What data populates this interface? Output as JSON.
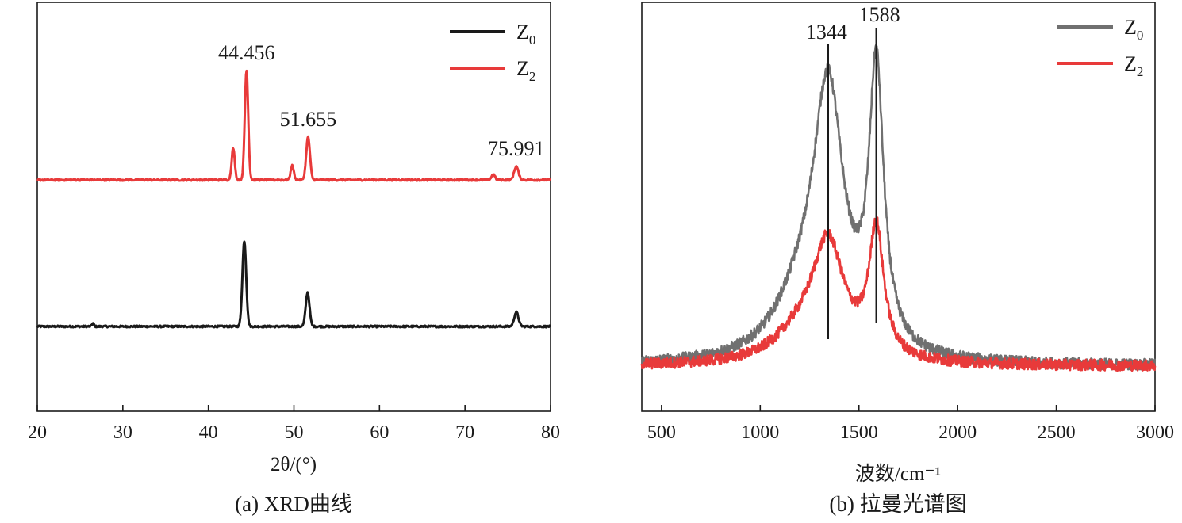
{
  "chart_data": [
    {
      "type": "line",
      "panel": "a",
      "caption": "(a) XRD曲线",
      "xlabel": "2θ/(°)",
      "ylabel": "",
      "xlim": [
        20,
        80
      ],
      "xticks": [
        "20",
        "30",
        "40",
        "50",
        "60",
        "70",
        "80"
      ],
      "y_ticks_shown": false,
      "grid": false,
      "legend": {
        "placement": "top-right",
        "entries": [
          {
            "base": "Z",
            "sub": "0",
            "color": "#1a1a1a"
          },
          {
            "base": "Z",
            "sub": "2",
            "color": "#e83a3a"
          }
        ]
      },
      "series": [
        {
          "legend": "Z0",
          "color": "#1a1a1a",
          "baseline": 0,
          "peaks": [
            {
              "x": 26.5,
              "height": 4,
              "width": 0.12
            },
            {
              "x": 44.2,
              "height": 108,
              "width": 0.22
            },
            {
              "x": 51.6,
              "height": 43,
              "width": 0.22
            },
            {
              "x": 76.0,
              "height": 18,
              "width": 0.25
            }
          ]
        },
        {
          "legend": "Z2",
          "color": "#e83a3a",
          "baseline": 185,
          "peaks": [
            {
              "x": 42.9,
              "height": 40,
              "width": 0.18
            },
            {
              "x": 44.456,
              "height": 138,
              "width": 0.2
            },
            {
              "x": 49.8,
              "height": 18,
              "width": 0.18
            },
            {
              "x": 51.655,
              "height": 54,
              "width": 0.22
            },
            {
              "x": 73.3,
              "height": 7,
              "width": 0.2
            },
            {
              "x": 75.991,
              "height": 17,
              "width": 0.25
            }
          ]
        }
      ],
      "annotations": [
        {
          "text": "44.456",
          "x": 44.456
        },
        {
          "text": "51.655",
          "x": 51.655
        },
        {
          "text": "75.991",
          "x": 75.991
        }
      ]
    },
    {
      "type": "line",
      "panel": "b",
      "caption": "(b) 拉曼光谱图",
      "xlabel": "波数/cm⁻¹",
      "ylabel": "",
      "xlim": [
        400,
        3000
      ],
      "xticks": [
        "500",
        "1000",
        "1500",
        "2000",
        "2500",
        "3000"
      ],
      "y_ticks_shown": false,
      "grid": false,
      "legend": {
        "placement": "top-right",
        "entries": [
          {
            "base": "Z",
            "sub": "0",
            "color": "#707070"
          },
          {
            "base": "Z",
            "sub": "2",
            "color": "#e83a3a"
          }
        ]
      },
      "series": [
        {
          "legend": "Z0",
          "color": "#707070",
          "baseline": 0,
          "bands": [
            {
              "center": 1344,
              "height": 330,
              "width": 95
            },
            {
              "center": 1588,
              "height": 350,
              "width": 45
            },
            {
              "center": 1200,
              "height": 60,
              "width": 160
            }
          ]
        },
        {
          "legend": "Z2",
          "color": "#e83a3a",
          "baseline": 0,
          "bands": [
            {
              "center": 1344,
              "height": 145,
              "width": 100
            },
            {
              "center": 1588,
              "height": 160,
              "width": 45
            },
            {
              "center": 1200,
              "height": 30,
              "width": 160
            }
          ]
        }
      ],
      "markers": [
        {
          "text": "1344",
          "x": 1344
        },
        {
          "text": "1588",
          "x": 1588
        }
      ]
    }
  ]
}
